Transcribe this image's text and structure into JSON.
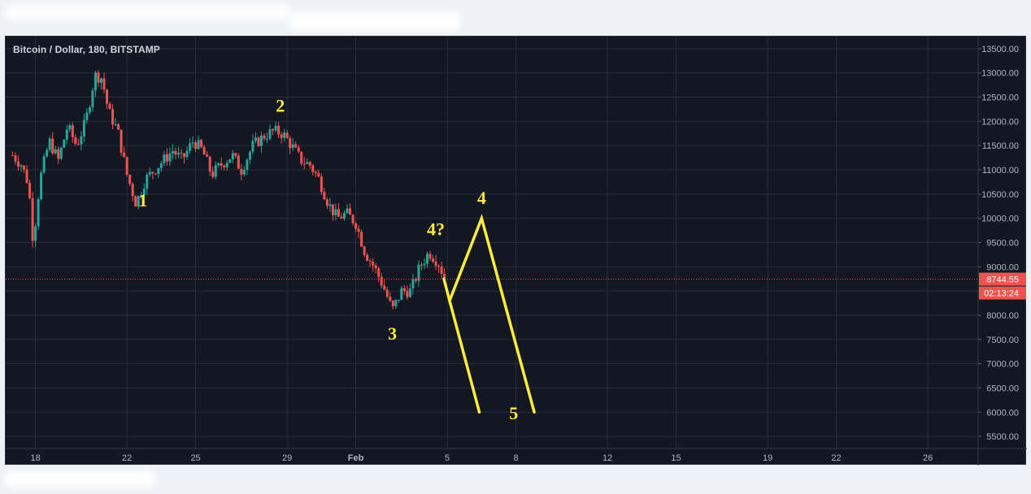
{
  "header": {
    "symbol_title": "Bitcoin / Dollar, 180, BITSTAMP"
  },
  "price_labels": {
    "last_price": "8744.55",
    "countdown": "02:13:24"
  },
  "colors": {
    "background": "#131722",
    "grid": "#2a2e39",
    "up": "#26a69a",
    "down": "#ef5350",
    "annotation": "#ffeb3b",
    "axis_text": "#b2b5be"
  },
  "chart_data": {
    "type": "candlestick",
    "title": "Bitcoin / Dollar, 180, BITSTAMP",
    "y_ticks": [
      "13500.00",
      "13000.00",
      "12500.00",
      "12000.00",
      "11500.00",
      "11000.00",
      "10500.00",
      "10000.00",
      "9500.00",
      "9000.00",
      "8500.00",
      "8000.00",
      "7500.00",
      "7000.00",
      "6500.00",
      "6000.00",
      "5500.00"
    ],
    "x_ticks": [
      {
        "label": "18",
        "day": 0
      },
      {
        "label": "22",
        "day": 4
      },
      {
        "label": "25",
        "day": 7
      },
      {
        "label": "29",
        "day": 11
      },
      {
        "label": "Feb",
        "day": 14
      },
      {
        "label": "5",
        "day": 18
      },
      {
        "label": "8",
        "day": 21
      },
      {
        "label": "12",
        "day": 25
      },
      {
        "label": "15",
        "day": 28
      },
      {
        "label": "19",
        "day": 32
      },
      {
        "label": "22",
        "day": 35
      },
      {
        "label": "26",
        "day": 39
      }
    ],
    "ylim": [
      5250,
      13750
    ],
    "xlim_days": [
      -1.3,
      41.2
    ],
    "last_price": 8744.55,
    "price_path": [
      [
        -1.0,
        11300
      ],
      [
        -0.6,
        11100
      ],
      [
        -0.3,
        10700
      ],
      [
        -0.1,
        9500
      ],
      [
        0.2,
        10800
      ],
      [
        0.6,
        11600
      ],
      [
        1.0,
        11200
      ],
      [
        1.4,
        11900
      ],
      [
        1.8,
        11500
      ],
      [
        2.2,
        12000
      ],
      [
        2.6,
        12950
      ],
      [
        2.9,
        12900
      ],
      [
        3.2,
        12200
      ],
      [
        3.6,
        11800
      ],
      [
        4.0,
        10900
      ],
      [
        4.4,
        10300
      ],
      [
        4.8,
        10800
      ],
      [
        5.2,
        11000
      ],
      [
        5.6,
        11200
      ],
      [
        6.0,
        11400
      ],
      [
        6.4,
        11200
      ],
      [
        6.9,
        11600
      ],
      [
        7.3,
        11400
      ],
      [
        7.7,
        10900
      ],
      [
        8.1,
        11100
      ],
      [
        8.6,
        11300
      ],
      [
        9.0,
        11000
      ],
      [
        9.5,
        11500
      ],
      [
        10.0,
        11700
      ],
      [
        10.4,
        11800
      ],
      [
        10.8,
        11750
      ],
      [
        11.2,
        11500
      ],
      [
        11.6,
        11200
      ],
      [
        12.0,
        11100
      ],
      [
        12.4,
        10800
      ],
      [
        12.8,
        10300
      ],
      [
        13.2,
        10000
      ],
      [
        13.6,
        10100
      ],
      [
        14.0,
        9900
      ],
      [
        14.4,
        9300
      ],
      [
        14.8,
        9000
      ],
      [
        15.2,
        8600
      ],
      [
        15.6,
        8100
      ],
      [
        16.0,
        8500
      ],
      [
        16.4,
        8500
      ],
      [
        16.8,
        9000
      ],
      [
        17.2,
        9300
      ],
      [
        17.6,
        9100
      ],
      [
        17.9,
        8744
      ]
    ],
    "annotations": [
      {
        "text": "1",
        "day": 4.7,
        "price": 10250
      },
      {
        "text": "2",
        "day": 10.7,
        "price": 12200
      },
      {
        "text": "3",
        "day": 15.6,
        "price": 7500
      },
      {
        "text": "4?",
        "day": 17.5,
        "price": 9650
      },
      {
        "text": "4",
        "day": 19.5,
        "price": 10300
      },
      {
        "text": "5",
        "day": 20.9,
        "price": 5850
      }
    ],
    "projection_lines": [
      {
        "points": [
          [
            17.85,
            8750
          ],
          [
            18.1,
            8300
          ],
          [
            19.5,
            10000
          ],
          [
            21.8,
            6000
          ]
        ]
      },
      {
        "points": [
          [
            18.1,
            8300
          ],
          [
            19.4,
            6000
          ]
        ]
      }
    ]
  }
}
